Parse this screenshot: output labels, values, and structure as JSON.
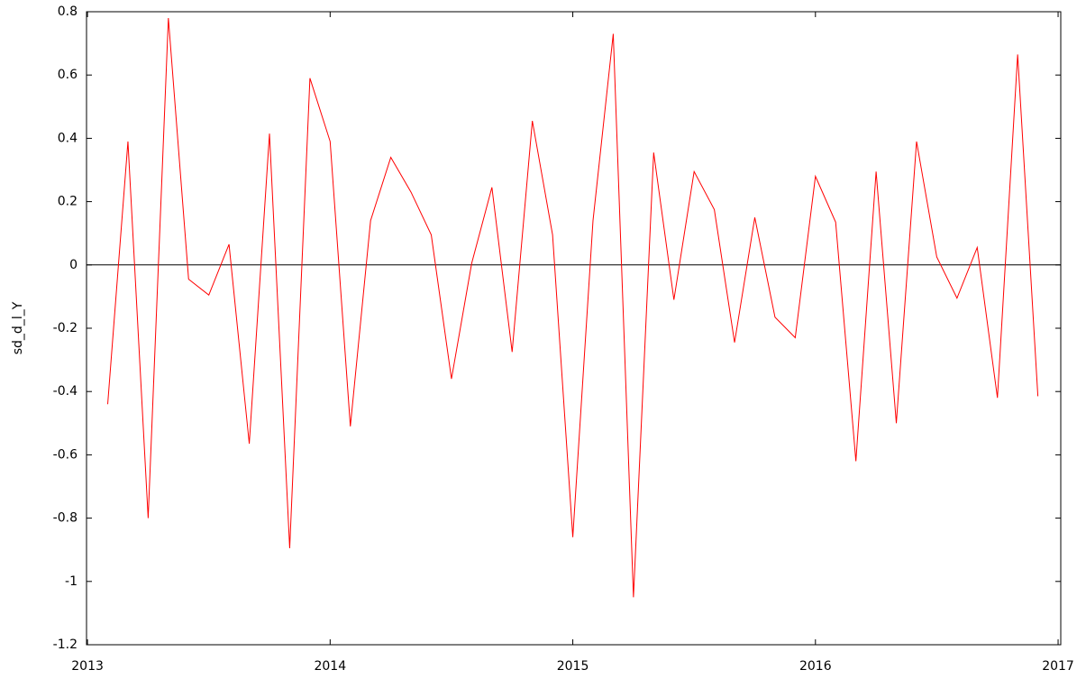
{
  "chart_data": {
    "type": "line",
    "y_label": "sd_d_l_Y",
    "x": [
      2013.0833,
      2013.1667,
      2013.25,
      2013.3333,
      2013.4167,
      2013.5,
      2013.5833,
      2013.6667,
      2013.75,
      2013.8333,
      2013.9167,
      2014.0,
      2014.0833,
      2014.1667,
      2014.25,
      2014.3333,
      2014.4167,
      2014.5,
      2014.5833,
      2014.6667,
      2014.75,
      2014.8333,
      2014.9167,
      2015.0,
      2015.0833,
      2015.1667,
      2015.25,
      2015.3333,
      2015.4167,
      2015.5,
      2015.5833,
      2015.6667,
      2015.75,
      2015.8333,
      2015.9167,
      2016.0,
      2016.0833,
      2016.1667,
      2016.25,
      2016.3333,
      2016.4167,
      2016.5,
      2016.5833,
      2016.6667,
      2016.75,
      2016.8333,
      2016.9167
    ],
    "series": [
      {
        "color": "#ff0000",
        "values": [
          -0.44,
          0.39,
          -0.8,
          0.78,
          -0.045,
          -0.095,
          0.065,
          -0.565,
          0.415,
          -0.895,
          0.59,
          0.39,
          -0.51,
          0.14,
          0.34,
          0.23,
          0.095,
          -0.36,
          0.005,
          0.245,
          -0.275,
          0.455,
          0.095,
          -0.86,
          0.14,
          0.73,
          -1.05,
          0.355,
          -0.11,
          0.295,
          0.175,
          -0.245,
          0.15,
          -0.165,
          -0.23,
          0.28,
          0.135,
          -0.62,
          0.295,
          -0.5,
          0.39,
          0.025,
          -0.105,
          0.055,
          -0.42,
          0.665,
          -0.415
        ]
      }
    ],
    "xlim": [
      2012.996,
      2017.011
    ],
    "xticks": [
      2013,
      2014,
      2015,
      2016,
      2017
    ],
    "ylim": [
      -1.2,
      0.8
    ],
    "yticks": [
      -1.2,
      -1,
      -0.8,
      -0.6,
      -0.4,
      -0.2,
      0,
      0.2,
      0.4,
      0.6,
      0.8
    ],
    "zero_line": true
  }
}
